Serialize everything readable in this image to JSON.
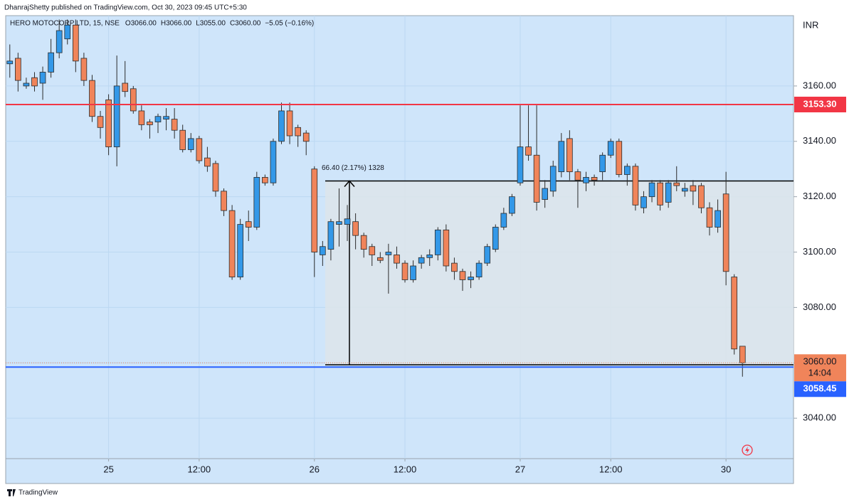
{
  "chart_data": {
    "type": "candlestick",
    "header": "DhanrajShetty published on TradingView.com, Oct 30, 2023 09:45 UTC+5:30",
    "symbol": "HERO MOTOCORP LTD, 15, NSE",
    "legend_values": [
      "O3066.00",
      "H3066.00",
      "L3055.00",
      "C3060.00",
      "−5.05 (−0.16%)"
    ],
    "currency": "INR",
    "footer": "TradingView",
    "up_color": "#3398e8",
    "down_color": "#f0845a",
    "border_color": "#2b2b2b",
    "xlim": [
      -0.5,
      95.2
    ],
    "xticks": [
      {
        "value": 12,
        "label": "25"
      },
      {
        "value": 23,
        "label": "12:00"
      },
      {
        "value": 37,
        "label": "26"
      },
      {
        "value": 48,
        "label": "12:00"
      },
      {
        "value": 62,
        "label": "27"
      },
      {
        "value": 73,
        "label": "12:00"
      },
      {
        "value": 87,
        "label": "30"
      }
    ],
    "ylim": [
      3025.4,
      3185.4
    ],
    "yticks": [
      {
        "value": 3040,
        "label": "3040.00"
      },
      {
        "value": 3060,
        "label": "3060.00"
      },
      {
        "value": 3080,
        "label": "3080.00"
      },
      {
        "value": 3100,
        "label": "3100.00"
      },
      {
        "value": 3120,
        "label": "3120.00"
      },
      {
        "value": 3140,
        "label": "3140.00"
      },
      {
        "value": 3160,
        "label": "3160.00"
      }
    ],
    "grid": true,
    "price_lines": [
      {
        "value": 3153.3,
        "label": "3153.30",
        "color": "#f23645"
      },
      {
        "value": 3058.45,
        "label": "3058.45",
        "color": "#2962ff"
      }
    ],
    "last_price": {
      "value": 3060,
      "label": "3060.00",
      "countdown": "14:04",
      "color": "#f0845a"
    },
    "measure": {
      "label": "66.40 (2.17%) 1328",
      "from": 3059.3,
      "to": 3125.7
    },
    "candles": [
      {
        "o": 3168,
        "h": 3175,
        "l": 3163,
        "c": 3169
      },
      {
        "o": 3170,
        "h": 3172,
        "l": 3158,
        "c": 3162
      },
      {
        "o": 3160,
        "h": 3163,
        "l": 3159,
        "c": 3161
      },
      {
        "o": 3163,
        "h": 3165,
        "l": 3158,
        "c": 3160
      },
      {
        "o": 3161,
        "h": 3167,
        "l": 3155,
        "c": 3165
      },
      {
        "o": 3165,
        "h": 3177,
        "l": 3163,
        "c": 3172
      },
      {
        "o": 3172,
        "h": 3184,
        "l": 3170,
        "c": 3180
      },
      {
        "o": 3177,
        "h": 3184,
        "l": 3175,
        "c": 3182
      },
      {
        "o": 3182,
        "h": 3184,
        "l": 3165,
        "c": 3169
      },
      {
        "o": 3170,
        "h": 3172,
        "l": 3160,
        "c": 3162
      },
      {
        "o": 3162,
        "h": 3164,
        "l": 3147,
        "c": 3149
      },
      {
        "o": 3149,
        "h": 3151,
        "l": 3141,
        "c": 3145
      },
      {
        "o": 3155,
        "h": 3157,
        "l": 3135,
        "c": 3138
      },
      {
        "o": 3138,
        "h": 3171,
        "l": 3131,
        "c": 3160
      },
      {
        "o": 3161,
        "h": 3169,
        "l": 3156,
        "c": 3158
      },
      {
        "o": 3159,
        "h": 3160,
        "l": 3150,
        "c": 3151
      },
      {
        "o": 3151,
        "h": 3153,
        "l": 3144,
        "c": 3146
      },
      {
        "o": 3147,
        "h": 3148,
        "l": 3141,
        "c": 3146
      },
      {
        "o": 3147,
        "h": 3150,
        "l": 3143,
        "c": 3149
      },
      {
        "o": 3148,
        "h": 3152,
        "l": 3144,
        "c": 3149
      },
      {
        "o": 3148,
        "h": 3152,
        "l": 3141,
        "c": 3144
      },
      {
        "o": 3144,
        "h": 3146,
        "l": 3136,
        "c": 3137
      },
      {
        "o": 3137,
        "h": 3143,
        "l": 3136,
        "c": 3141
      },
      {
        "o": 3141,
        "h": 3142,
        "l": 3132,
        "c": 3133
      },
      {
        "o": 3134,
        "h": 3138,
        "l": 3129,
        "c": 3131
      },
      {
        "o": 3132,
        "h": 3133,
        "l": 3120,
        "c": 3122
      },
      {
        "o": 3122,
        "h": 3123,
        "l": 3113,
        "c": 3115
      },
      {
        "o": 3115,
        "h": 3117,
        "l": 3090,
        "c": 3091
      },
      {
        "o": 3091,
        "h": 3112,
        "l": 3090,
        "c": 3110
      },
      {
        "o": 3111,
        "h": 3115,
        "l": 3104,
        "c": 3109
      },
      {
        "o": 3109,
        "h": 3129,
        "l": 3108,
        "c": 3127
      },
      {
        "o": 3127,
        "h": 3128,
        "l": 3124,
        "c": 3125
      },
      {
        "o": 3125,
        "h": 3141,
        "l": 3124,
        "c": 3140
      },
      {
        "o": 3140,
        "h": 3154,
        "l": 3139,
        "c": 3151
      },
      {
        "o": 3151,
        "h": 3154,
        "l": 3139,
        "c": 3142
      },
      {
        "o": 3145,
        "h": 3146,
        "l": 3138,
        "c": 3142
      },
      {
        "o": 3143,
        "h": 3144,
        "l": 3135,
        "c": 3140
      },
      {
        "o": 3130,
        "h": 3131,
        "l": 3091,
        "c": 3100
      },
      {
        "o": 3099,
        "h": 3104,
        "l": 3095,
        "c": 3102
      },
      {
        "o": 3101,
        "h": 3112,
        "l": 3097,
        "c": 3111
      },
      {
        "o": 3110,
        "h": 3123,
        "l": 3102,
        "c": 3111
      },
      {
        "o": 3110,
        "h": 3117,
        "l": 3104,
        "c": 3112
      },
      {
        "o": 3111,
        "h": 3114,
        "l": 3101,
        "c": 3106
      },
      {
        "o": 3106,
        "h": 3107,
        "l": 3098,
        "c": 3101
      },
      {
        "o": 3102,
        "h": 3103,
        "l": 3095,
        "c": 3099
      },
      {
        "o": 3098,
        "h": 3100,
        "l": 3096,
        "c": 3097
      },
      {
        "o": 3099,
        "h": 3103,
        "l": 3085,
        "c": 3100
      },
      {
        "o": 3099,
        "h": 3102,
        "l": 3094,
        "c": 3096
      },
      {
        "o": 3096,
        "h": 3097,
        "l": 3089,
        "c": 3090
      },
      {
        "o": 3090,
        "h": 3097,
        "l": 3089,
        "c": 3095
      },
      {
        "o": 3096,
        "h": 3099,
        "l": 3094,
        "c": 3098
      },
      {
        "o": 3098,
        "h": 3101,
        "l": 3095,
        "c": 3099
      },
      {
        "o": 3099,
        "h": 3109,
        "l": 3097,
        "c": 3108
      },
      {
        "o": 3108,
        "h": 3110,
        "l": 3093,
        "c": 3095
      },
      {
        "o": 3096,
        "h": 3098,
        "l": 3090,
        "c": 3093
      },
      {
        "o": 3093,
        "h": 3094,
        "l": 3086,
        "c": 3090
      },
      {
        "o": 3090,
        "h": 3093,
        "l": 3087,
        "c": 3091
      },
      {
        "o": 3091,
        "h": 3097,
        "l": 3090,
        "c": 3096
      },
      {
        "o": 3096,
        "h": 3103,
        "l": 3095,
        "c": 3102
      },
      {
        "o": 3101,
        "h": 3110,
        "l": 3100,
        "c": 3109
      },
      {
        "o": 3109,
        "h": 3116,
        "l": 3108,
        "c": 3114
      },
      {
        "o": 3114,
        "h": 3121,
        "l": 3113,
        "c": 3120
      },
      {
        "o": 3125,
        "h": 3153,
        "l": 3124,
        "c": 3138
      },
      {
        "o": 3138,
        "h": 3153,
        "l": 3133,
        "c": 3135
      },
      {
        "o": 3135,
        "h": 3153,
        "l": 3115,
        "c": 3118
      },
      {
        "o": 3119,
        "h": 3126,
        "l": 3116,
        "c": 3123
      },
      {
        "o": 3122,
        "h": 3133,
        "l": 3120,
        "c": 3131
      },
      {
        "o": 3129,
        "h": 3143,
        "l": 3127,
        "c": 3140
      },
      {
        "o": 3141,
        "h": 3144,
        "l": 3126,
        "c": 3129
      },
      {
        "o": 3129,
        "h": 3130,
        "l": 3116,
        "c": 3126
      },
      {
        "o": 3125,
        "h": 3129,
        "l": 3122,
        "c": 3127
      },
      {
        "o": 3127,
        "h": 3128,
        "l": 3124,
        "c": 3126
      },
      {
        "o": 3129,
        "h": 3136,
        "l": 3126,
        "c": 3135
      },
      {
        "o": 3135,
        "h": 3141,
        "l": 3134,
        "c": 3140
      },
      {
        "o": 3140,
        "h": 3141,
        "l": 3127,
        "c": 3128
      },
      {
        "o": 3128,
        "h": 3132,
        "l": 3124,
        "c": 3131
      },
      {
        "o": 3131,
        "h": 3132,
        "l": 3115,
        "c": 3117
      },
      {
        "o": 3116,
        "h": 3122,
        "l": 3114,
        "c": 3120
      },
      {
        "o": 3120,
        "h": 3126,
        "l": 3118,
        "c": 3125
      },
      {
        "o": 3125,
        "h": 3126,
        "l": 3115,
        "c": 3117
      },
      {
        "o": 3118,
        "h": 3126,
        "l": 3116,
        "c": 3125
      },
      {
        "o": 3125,
        "h": 3131,
        "l": 3122,
        "c": 3124
      },
      {
        "o": 3122,
        "h": 3125,
        "l": 3120,
        "c": 3123
      },
      {
        "o": 3124,
        "h": 3126,
        "l": 3117,
        "c": 3122
      },
      {
        "o": 3124,
        "h": 3125,
        "l": 3114,
        "c": 3116
      },
      {
        "o": 3116,
        "h": 3118,
        "l": 3106,
        "c": 3109
      },
      {
        "o": 3109,
        "h": 3119,
        "l": 3107,
        "c": 3115
      },
      {
        "o": 3121,
        "h": 3129,
        "l": 3088,
        "c": 3093
      },
      {
        "o": 3091,
        "h": 3092,
        "l": 3063,
        "c": 3065
      },
      {
        "o": 3066,
        "h": 3066,
        "l": 3055,
        "c": 3060
      }
    ]
  }
}
